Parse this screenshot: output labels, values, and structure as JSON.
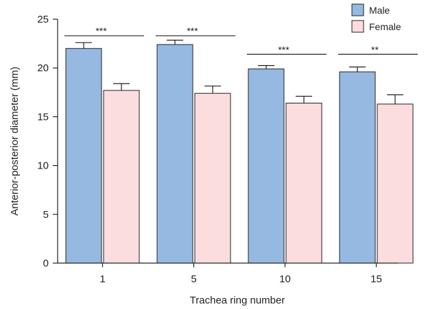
{
  "chart_data": {
    "type": "bar",
    "categories": [
      "1",
      "5",
      "10",
      "15"
    ],
    "series": [
      {
        "name": "Male",
        "color": "#95b9e1",
        "values": [
          22.0,
          22.4,
          19.9,
          19.6
        ],
        "errors": [
          0.6,
          0.45,
          0.35,
          0.5
        ]
      },
      {
        "name": "Female",
        "color": "#fbdcdf",
        "values": [
          17.7,
          17.4,
          16.4,
          16.3
        ],
        "errors": [
          0.7,
          0.75,
          0.7,
          0.95
        ]
      }
    ],
    "significance": [
      "***",
      "***",
      "***",
      "**"
    ],
    "significance_y": [
      23.3,
      23.3,
      21.4,
      21.4
    ],
    "xlabel": "Trachea ring number",
    "ylabel": "Anterior-posterior diameter (mm)",
    "ylim": [
      0,
      25
    ],
    "yticks": [
      0,
      5,
      10,
      15,
      20,
      25
    ],
    "grid": false,
    "legend_position": "top-right"
  }
}
